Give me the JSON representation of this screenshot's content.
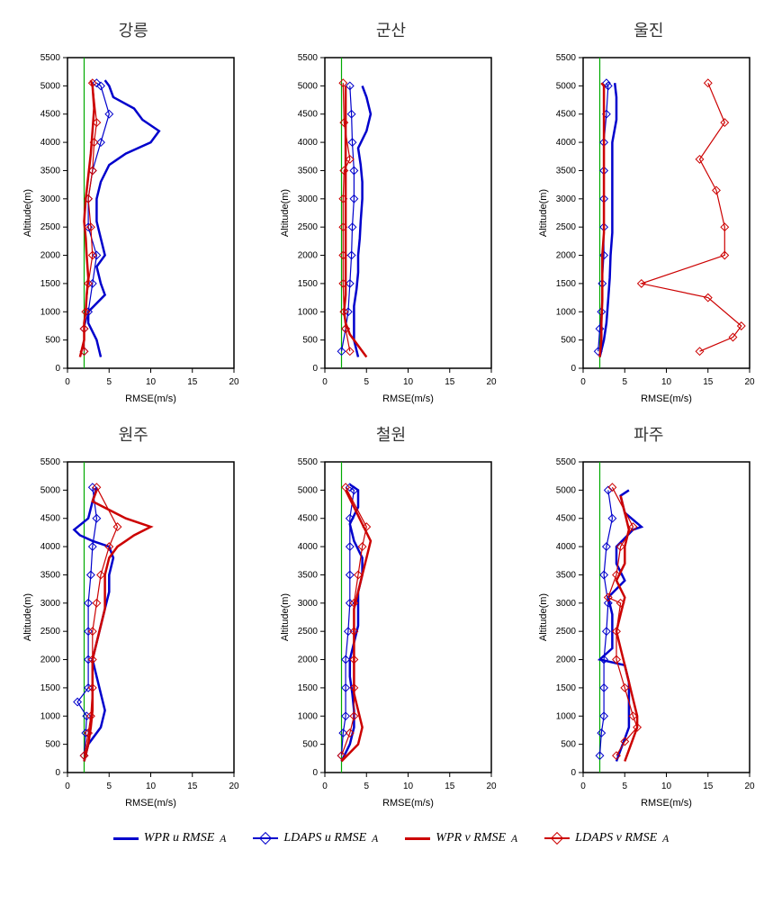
{
  "global": {
    "xlabel": "RMSE(m/s)",
    "ylabel": "Altitude(m)",
    "xlim": [
      0,
      20
    ],
    "ylim": [
      0,
      5500
    ],
    "xticks": [
      0,
      5,
      10,
      15,
      20
    ],
    "yticks": [
      0,
      500,
      1000,
      1500,
      2000,
      2500,
      3000,
      3500,
      4000,
      4500,
      5000,
      5500
    ],
    "ref_line_x": 2,
    "colors": {
      "wpr_u": "#0000cc",
      "ldaps_u": "#0000cc",
      "wpr_v": "#cc0000",
      "ldaps_v": "#cc0000",
      "ref_line": "#00aa00",
      "axis": "#000000",
      "background": "#ffffff"
    },
    "line_styles": {
      "wpr_u": {
        "width": 2.5,
        "marker": "none"
      },
      "ldaps_u": {
        "width": 1.2,
        "marker": "diamond"
      },
      "wpr_v": {
        "width": 2.5,
        "marker": "none"
      },
      "ldaps_v": {
        "width": 1.2,
        "marker": "diamond"
      }
    },
    "label_fontsize": 11,
    "tick_fontsize": 10
  },
  "legend": {
    "items": [
      {
        "key": "wpr_u",
        "label": "WPR  u  RMSE",
        "sub": "A",
        "color": "#0000cc",
        "thick": true,
        "marker": false
      },
      {
        "key": "ldaps_u",
        "label": "LDAPS  u  RMSE",
        "sub": "A",
        "color": "#0000cc",
        "thick": false,
        "marker": true
      },
      {
        "key": "wpr_v",
        "label": "WPR  v  RMSE",
        "sub": "A",
        "color": "#cc0000",
        "thick": true,
        "marker": false
      },
      {
        "key": "ldaps_v",
        "label": "LDAPS  v  RMSE",
        "sub": "A",
        "color": "#cc0000",
        "thick": false,
        "marker": true
      }
    ]
  },
  "panels": [
    {
      "title": "강릉",
      "series": {
        "wpr_u": {
          "y": [
            200,
            500,
            800,
            1000,
            1300,
            1500,
            1800,
            2000,
            2300,
            2600,
            3000,
            3300,
            3600,
            3800,
            4000,
            4200,
            4400,
            4600,
            4800,
            5000,
            5100
          ],
          "x": [
            4,
            3.5,
            2.5,
            2.5,
            4.5,
            4,
            3.5,
            4.5,
            4,
            3.5,
            3.5,
            4,
            5,
            7,
            10,
            11,
            9,
            8,
            5.5,
            5,
            4.5
          ]
        },
        "ldaps_u": {
          "y": [
            300,
            700,
            1000,
            1500,
            2000,
            2500,
            3000,
            3500,
            4000,
            4500,
            5000,
            5050
          ],
          "x": [
            2,
            2,
            2.5,
            3,
            3.5,
            2.5,
            2.5,
            3,
            4,
            5,
            4,
            3.5
          ]
        },
        "wpr_v": {
          "y": [
            200,
            500,
            800,
            1000,
            1300,
            1600,
            2000,
            2300,
            2600,
            3000,
            3400,
            3800,
            4200,
            4600,
            5000,
            5100
          ],
          "x": [
            1.5,
            2,
            2,
            2.2,
            2.3,
            2.5,
            2.3,
            2.2,
            2,
            2.2,
            2.5,
            2.8,
            3,
            3.2,
            3,
            2.8
          ]
        },
        "ldaps_v": {
          "y": [
            300,
            700,
            1000,
            1500,
            2000,
            2500,
            3000,
            3500,
            4000,
            4350,
            5050
          ],
          "x": [
            2,
            2,
            2.2,
            2.5,
            3,
            2.8,
            2.5,
            3,
            3.2,
            3.5,
            3
          ]
        }
      }
    },
    {
      "title": "군산",
      "series": {
        "wpr_u": {
          "y": [
            200,
            500,
            800,
            1100,
            1400,
            1700,
            2000,
            2300,
            2600,
            3000,
            3300,
            3600,
            3900,
            4200,
            4500,
            4800,
            5000
          ],
          "x": [
            4,
            3.5,
            3.5,
            3.5,
            3.8,
            4,
            4,
            4.2,
            4.3,
            4.5,
            4.5,
            4.3,
            4,
            5,
            5.5,
            5,
            4.5
          ]
        },
        "ldaps_u": {
          "y": [
            300,
            700,
            1000,
            1500,
            2000,
            2500,
            3000,
            3500,
            4000,
            4500,
            5000
          ],
          "x": [
            2,
            2.5,
            2.8,
            3,
            3.2,
            3.3,
            3.5,
            3.5,
            3.3,
            3.2,
            3
          ]
        },
        "wpr_v": {
          "y": [
            200,
            400,
            600,
            800,
            1000,
            1300,
            1600,
            2000,
            2400,
            2800,
            3200,
            3600,
            4000,
            4500,
            5000
          ],
          "x": [
            5,
            4,
            3,
            2.5,
            2.3,
            2.5,
            2.5,
            2.5,
            2.5,
            2.5,
            2.5,
            2.5,
            2.5,
            2.5,
            2.5
          ]
        },
        "ldaps_v": {
          "y": [
            300,
            700,
            1000,
            1500,
            2000,
            2500,
            3000,
            3500,
            3700,
            4350,
            5050
          ],
          "x": [
            3,
            2.5,
            2.3,
            2.2,
            2.2,
            2.2,
            2.2,
            2.3,
            3,
            2.3,
            2.2
          ]
        }
      }
    },
    {
      "title": "울진",
      "series": {
        "wpr_u": {
          "y": [
            200,
            500,
            800,
            1200,
            1600,
            2000,
            2400,
            2800,
            3200,
            3600,
            4000,
            4400,
            4800,
            5050
          ],
          "x": [
            2,
            2.5,
            2.8,
            3,
            3.2,
            3.3,
            3.5,
            3.5,
            3.5,
            3.5,
            3.5,
            4,
            4,
            3.8
          ]
        },
        "ldaps_u": {
          "y": [
            300,
            700,
            1000,
            1500,
            2000,
            2500,
            3000,
            3500,
            4000,
            4500,
            5000,
            5050
          ],
          "x": [
            1.8,
            2,
            2.2,
            2.3,
            2.5,
            2.5,
            2.5,
            2.5,
            2.5,
            2.8,
            3,
            2.8
          ]
        },
        "wpr_v": {
          "y": [
            200,
            500,
            800,
            1200,
            1600,
            2000,
            2400,
            2800,
            3200,
            3600,
            4000,
            4400,
            4800,
            5000,
            5050
          ],
          "x": [
            2,
            2.2,
            2.2,
            2.3,
            2.3,
            2.3,
            2.5,
            2.5,
            2.5,
            2.5,
            2.5,
            2.5,
            2.5,
            2.5,
            2.2
          ]
        },
        "ldaps_v": {
          "y": [
            300,
            550,
            750,
            1250,
            1500,
            2000,
            2500,
            3150,
            3700,
            4350,
            5050
          ],
          "x": [
            14,
            18,
            19,
            15,
            7,
            17,
            17,
            16,
            14,
            17,
            15
          ]
        }
      }
    },
    {
      "title": "원주",
      "series": {
        "wpr_u": {
          "y": [
            200,
            500,
            800,
            1100,
            1400,
            1700,
            2000,
            2300,
            2600,
            2900,
            3200,
            3500,
            3800,
            4000,
            4100,
            4200,
            4300,
            4500,
            4800,
            5050
          ],
          "x": [
            2,
            2.5,
            4,
            4.5,
            4,
            3.5,
            3,
            3.5,
            4,
            4.5,
            5,
            5,
            5.5,
            5,
            3,
            1.5,
            0.8,
            2.5,
            3,
            3.5
          ]
        },
        "ldaps_u": {
          "y": [
            300,
            700,
            1000,
            1250,
            1500,
            2000,
            2500,
            3000,
            3500,
            4000,
            4500,
            5050
          ],
          "x": [
            2,
            2.2,
            2.3,
            1.2,
            2.5,
            2.5,
            2.5,
            2.5,
            2.8,
            3,
            3.5,
            3
          ]
        },
        "wpr_v": {
          "y": [
            200,
            500,
            800,
            1100,
            1400,
            1700,
            2000,
            2300,
            2600,
            2900,
            3200,
            3500,
            3800,
            4000,
            4100,
            4200,
            4350,
            4500,
            4800,
            5000
          ],
          "x": [
            2,
            2.5,
            2.8,
            3,
            3,
            3,
            3,
            3.5,
            4,
            4.5,
            4.5,
            4.5,
            5,
            6,
            7,
            8,
            10,
            7,
            3,
            3.5
          ]
        },
        "ldaps_v": {
          "y": [
            300,
            700,
            1000,
            1500,
            2000,
            2500,
            3000,
            3500,
            4000,
            4350,
            5050
          ],
          "x": [
            2,
            2.5,
            2.8,
            3,
            3,
            3,
            3.5,
            4,
            5,
            6,
            3.5
          ]
        }
      }
    },
    {
      "title": "철원",
      "series": {
        "wpr_u": {
          "y": [
            200,
            500,
            800,
            1100,
            1400,
            1700,
            2000,
            2300,
            2600,
            2900,
            3200,
            3500,
            3800,
            4100,
            4400,
            4700,
            5000,
            5100
          ],
          "x": [
            2,
            3,
            3.5,
            3.5,
            3.3,
            3,
            3,
            3.5,
            4,
            4,
            4,
            4.5,
            4.5,
            3.5,
            3,
            4,
            4,
            3
          ]
        },
        "ldaps_u": {
          "y": [
            300,
            700,
            1000,
            1500,
            2000,
            2500,
            3000,
            3500,
            4000,
            4500,
            5000,
            5050
          ],
          "x": [
            2,
            2.2,
            2.5,
            2.5,
            2.5,
            2.8,
            3,
            3,
            3,
            3,
            3.5,
            3
          ]
        },
        "wpr_v": {
          "y": [
            200,
            500,
            800,
            1100,
            1400,
            1700,
            2000,
            2300,
            2600,
            2900,
            3200,
            3500,
            3800,
            4100,
            4400,
            4700,
            5000
          ],
          "x": [
            2,
            4,
            4.5,
            4,
            3.5,
            3.5,
            3.5,
            3.5,
            3.5,
            3.5,
            4,
            4.5,
            5,
            5.5,
            4.5,
            3.5,
            2.5
          ]
        },
        "ldaps_v": {
          "y": [
            300,
            700,
            1000,
            1500,
            2000,
            2500,
            3000,
            3500,
            4000,
            4350,
            5050
          ],
          "x": [
            2,
            3,
            3.5,
            3.5,
            3.5,
            3.5,
            3.5,
            4,
            4.5,
            5,
            2.5
          ]
        }
      }
    },
    {
      "title": "파주",
      "series": {
        "wpr_u": {
          "y": [
            200,
            400,
            600,
            800,
            1000,
            1300,
            1600,
            1900,
            2000,
            2200,
            2500,
            2800,
            3100,
            3400,
            3700,
            4000,
            4300,
            4350,
            4600,
            4900,
            5000
          ],
          "x": [
            4,
            4.5,
            5,
            5.5,
            5.5,
            5.5,
            5.5,
            5,
            2,
            3.5,
            3.5,
            3.5,
            3,
            5,
            4,
            4,
            6,
            7,
            5,
            4.5,
            5.5
          ]
        },
        "ldaps_u": {
          "y": [
            300,
            700,
            1000,
            1500,
            2000,
            2500,
            3000,
            3500,
            4000,
            4500,
            5000
          ],
          "x": [
            2,
            2.2,
            2.5,
            2.5,
            2.5,
            2.8,
            3,
            2.5,
            2.8,
            3.5,
            3
          ]
        },
        "wpr_v": {
          "y": [
            200,
            400,
            600,
            800,
            1000,
            1300,
            1600,
            1900,
            2200,
            2500,
            2800,
            3100,
            3400,
            3700,
            4000,
            4300,
            4600,
            4900
          ],
          "x": [
            5,
            5.5,
            6,
            6.5,
            6.5,
            6,
            5.5,
            5,
            4.5,
            4,
            4.5,
            5,
            4,
            5,
            5,
            5.5,
            5,
            4.5
          ]
        },
        "ldaps_v": {
          "y": [
            300,
            550,
            800,
            1000,
            1500,
            2000,
            2500,
            3000,
            3100,
            3500,
            4000,
            4350,
            5050
          ],
          "x": [
            4,
            5,
            6.5,
            6,
            5,
            4,
            4,
            4.5,
            3,
            4,
            4.5,
            6,
            3.5
          ]
        }
      }
    }
  ]
}
